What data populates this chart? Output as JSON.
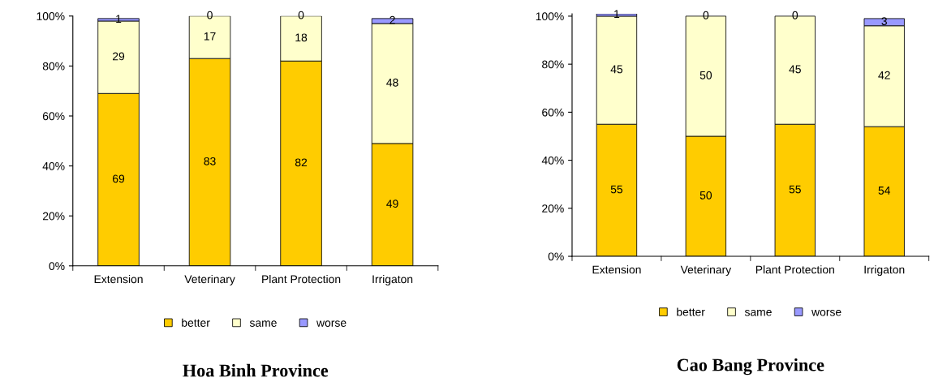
{
  "chart_data": [
    {
      "type": "bar",
      "stacked": true,
      "title": "Hoa Binh Province",
      "categories": [
        "Extension",
        "Veterinary",
        "Plant Protection",
        "Irrigaton"
      ],
      "series": [
        {
          "name": "better",
          "color": "#ffcc00",
          "values": [
            69,
            83,
            82,
            49
          ]
        },
        {
          "name": "same",
          "color": "#ffffcc",
          "values": [
            29,
            17,
            18,
            48
          ]
        },
        {
          "name": "worse",
          "color": "#9999ff",
          "values": [
            1,
            0,
            0,
            2
          ]
        }
      ],
      "ylim": [
        0,
        100
      ],
      "yticks": [
        {
          "value": 0,
          "label": "0%"
        },
        {
          "value": 20,
          "label": "20%"
        },
        {
          "value": 40,
          "label": "40%"
        },
        {
          "value": 60,
          "label": "60%"
        },
        {
          "value": 80,
          "label": "80%"
        },
        {
          "value": 100,
          "label": "100%"
        }
      ],
      "data_labels": true,
      "legend": "bottom",
      "grid": false
    },
    {
      "type": "bar",
      "stacked": true,
      "title": "Cao Bang Province",
      "categories": [
        "Extension",
        "Veterinary",
        "Plant Protection",
        "Irrigaton"
      ],
      "series": [
        {
          "name": "better",
          "color": "#ffcc00",
          "values": [
            55,
            50,
            55,
            54
          ]
        },
        {
          "name": "same",
          "color": "#ffffcc",
          "values": [
            45,
            50,
            45,
            42
          ]
        },
        {
          "name": "worse",
          "color": "#9999ff",
          "values": [
            1,
            0,
            0,
            3
          ]
        }
      ],
      "ylim": [
        0,
        101
      ],
      "yticks": [
        {
          "value": 0,
          "label": "0%"
        },
        {
          "value": 20,
          "label": "20%"
        },
        {
          "value": 40,
          "label": "40%"
        },
        {
          "value": 60,
          "label": "60%"
        },
        {
          "value": 80,
          "label": "80%"
        },
        {
          "value": 100,
          "label": "100%"
        }
      ],
      "data_labels": true,
      "legend": "bottom",
      "grid": false
    }
  ]
}
